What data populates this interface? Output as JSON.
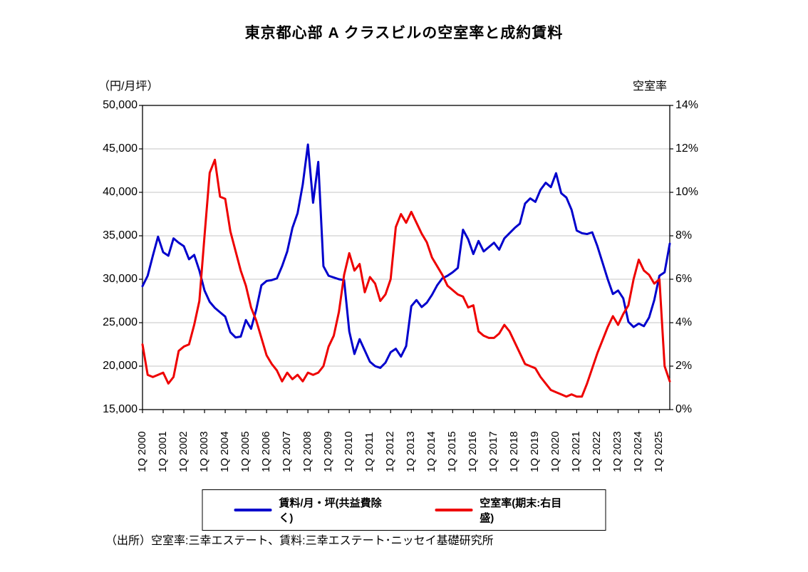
{
  "title": "東京都心部 A クラスビルの空室率と成約賃料",
  "left_axis": {
    "unit_label": "（円/月坪）",
    "ticks": [
      "50,000",
      "45,000",
      "40,000",
      "35,000",
      "30,000",
      "25,000",
      "20,000",
      "15,000"
    ]
  },
  "right_axis": {
    "title": "空室率",
    "ticks": [
      "14%",
      "12%",
      "10%",
      "8%",
      "6%",
      "4%",
      "2%",
      "0%"
    ]
  },
  "x_axis": {
    "labels": [
      "1Q 2000",
      "1Q 2001",
      "1Q 2002",
      "1Q 2003",
      "1Q 2004",
      "1Q 2005",
      "1Q 2006",
      "1Q 2007",
      "1Q 2008",
      "1Q 2009",
      "1Q 2010",
      "1Q 2011",
      "1Q 2012",
      "1Q 2013",
      "1Q 2014",
      "1Q 2015",
      "1Q 2016",
      "1Q 2017",
      "1Q 2018",
      "1Q 2019",
      "1Q 2020",
      "1Q 2021",
      "1Q 2022",
      "1Q 2023",
      "1Q 2024",
      "1Q 2025"
    ]
  },
  "legend": [
    {
      "label": "賃料/月・坪(共益費除く)",
      "color": "#0000cc"
    },
    {
      "label": "空室率(期末:右目盛)",
      "color": "#ee0000"
    }
  ],
  "source": "（出所）空室率:三幸エステート、賃料:三幸エステート･ニッセイ基礎研究所",
  "chart_data": {
    "type": "line",
    "x_start": "2000Q1",
    "x_end": "2025Q3",
    "x_step": "quarter",
    "grid": true,
    "left_ylim": [
      15000,
      50000
    ],
    "right_ylim": [
      0,
      14
    ],
    "series": [
      {
        "name": "賃料/月・坪(共益費除く)",
        "axis": "left",
        "color": "#0000cc",
        "values": [
          29200,
          30400,
          32700,
          34900,
          33100,
          32700,
          34700,
          34200,
          33800,
          32300,
          32800,
          31000,
          28700,
          27400,
          26700,
          26200,
          25700,
          23900,
          23300,
          23400,
          25300,
          24300,
          26500,
          29300,
          29800,
          29900,
          30100,
          31500,
          33200,
          35900,
          37600,
          40900,
          45500,
          38800,
          43500,
          31500,
          30400,
          30200,
          30000,
          29900,
          24000,
          21400,
          23100,
          21800,
          20500,
          20000,
          19800,
          20400,
          21600,
          22000,
          21100,
          22300,
          26900,
          27600,
          26800,
          27300,
          28200,
          29300,
          30100,
          30400,
          30800,
          31300,
          35700,
          34600,
          32900,
          34400,
          33200,
          33700,
          34200,
          33400,
          34700,
          35300,
          35900,
          36400,
          38700,
          39300,
          38900,
          40300,
          41100,
          40600,
          42200,
          39900,
          39400,
          38000,
          35600,
          35300,
          35200,
          35400,
          33800,
          31900,
          30000,
          28300,
          28700,
          27800,
          25100,
          24500,
          24900,
          24600,
          25600,
          27600,
          30400,
          30800,
          34100
        ]
      },
      {
        "name": "空室率(期末:右目盛)",
        "axis": "right",
        "color": "#ee0000",
        "values": [
          3.0,
          1.6,
          1.5,
          1.6,
          1.7,
          1.2,
          1.5,
          2.7,
          2.9,
          3.0,
          3.9,
          5.0,
          8.0,
          10.9,
          11.5,
          9.8,
          9.7,
          8.2,
          7.3,
          6.4,
          5.7,
          4.7,
          4.1,
          3.3,
          2.5,
          2.1,
          1.8,
          1.3,
          1.7,
          1.4,
          1.6,
          1.3,
          1.7,
          1.6,
          1.7,
          2.0,
          2.9,
          3.4,
          4.5,
          6.2,
          7.2,
          6.4,
          6.7,
          5.4,
          6.1,
          5.8,
          5.0,
          5.3,
          6.0,
          8.4,
          9.0,
          8.6,
          9.1,
          8.6,
          8.1,
          7.7,
          7.0,
          6.6,
          6.2,
          5.7,
          5.5,
          5.3,
          5.2,
          4.7,
          4.8,
          3.6,
          3.4,
          3.3,
          3.3,
          3.5,
          3.9,
          3.6,
          3.1,
          2.6,
          2.1,
          2.0,
          1.9,
          1.5,
          1.2,
          0.9,
          0.8,
          0.7,
          0.6,
          0.7,
          0.6,
          0.6,
          1.2,
          1.9,
          2.6,
          3.2,
          3.8,
          4.3,
          3.9,
          4.4,
          4.8,
          6.0,
          6.9,
          6.4,
          6.2,
          5.8,
          6.0,
          2.0,
          1.3
        ]
      }
    ]
  }
}
